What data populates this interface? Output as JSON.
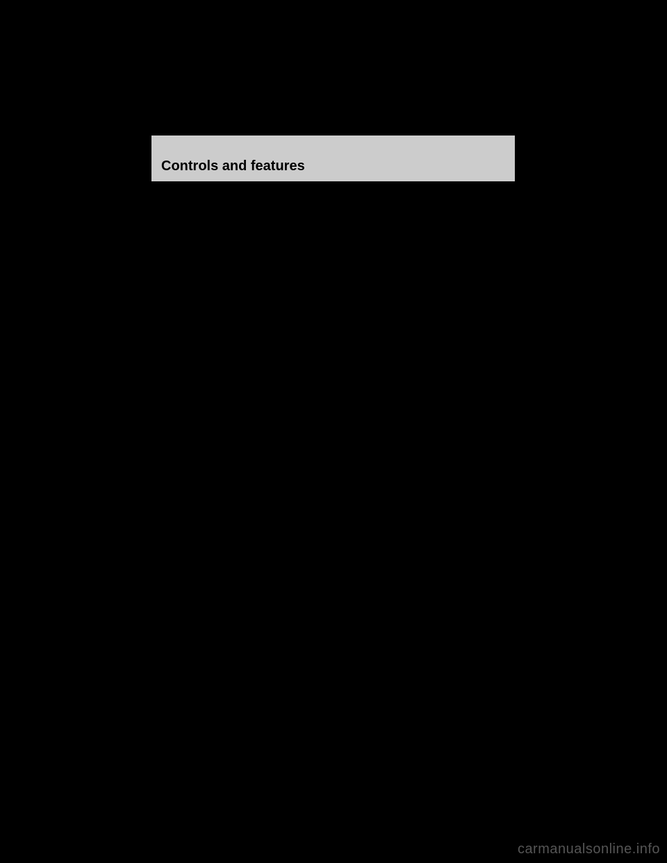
{
  "header": {
    "title": "Controls and features"
  },
  "watermark": {
    "text": "carmanualsonline.info"
  },
  "page": {
    "background_color": "#000000",
    "header_background_color": "#cccccc",
    "header_text_color": "#000000",
    "watermark_color": "#555555"
  }
}
